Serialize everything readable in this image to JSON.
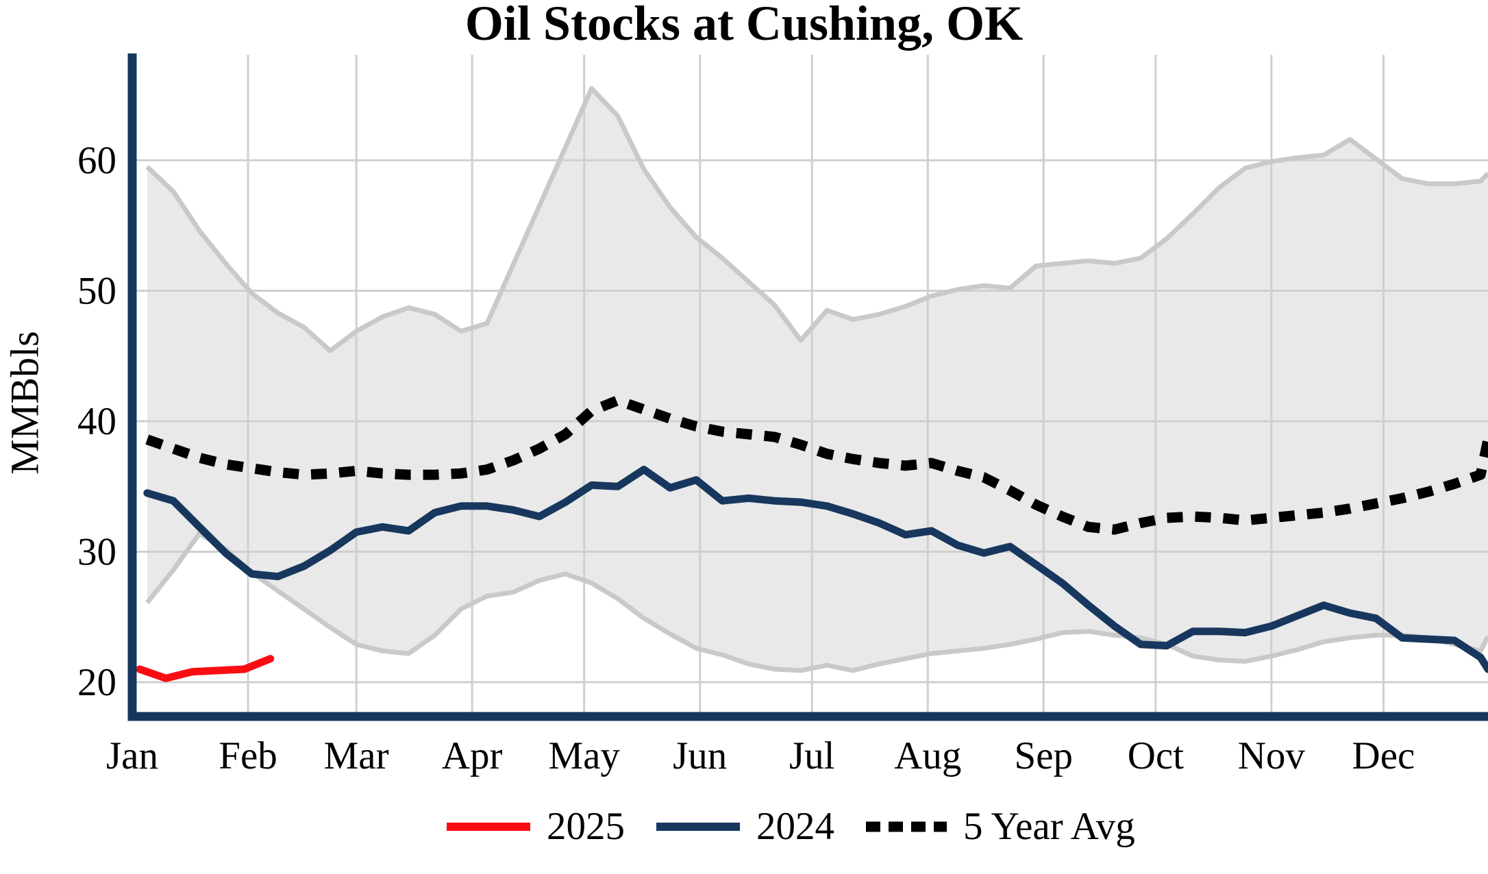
{
  "chart_data": {
    "type": "line",
    "title": "Oil Stocks at Cushing, OK",
    "ylabel": "MMBbls",
    "x_tick_labels": [
      "Jan",
      "Feb",
      "Mar",
      "Apr",
      "May",
      "Jun",
      "Jul",
      "Aug",
      "Sep",
      "Oct",
      "Nov",
      "Dec"
    ],
    "month_start_days": [
      0,
      31,
      60,
      91,
      121,
      152,
      182,
      213,
      244,
      274,
      305,
      335
    ],
    "y_ticks": [
      20,
      30,
      40,
      50,
      60
    ],
    "ylim": [
      17.5,
      67.5
    ],
    "grid": true,
    "legend_position": "bottom",
    "x_frequency": "weekly",
    "week_days": [
      4,
      11,
      18,
      25,
      32,
      39,
      46,
      53,
      60,
      67,
      74,
      81,
      88,
      95,
      102,
      109,
      116,
      123,
      130,
      137,
      144,
      151,
      158,
      165,
      172,
      179,
      186,
      193,
      200,
      207,
      214,
      221,
      228,
      235,
      242,
      249,
      256,
      263,
      270,
      277,
      284,
      291,
      298,
      305,
      312,
      319,
      326,
      333,
      340,
      347,
      354,
      361,
      363
    ],
    "band": {
      "name": "5-year range",
      "fill": "#e9e9e9",
      "edge": "#c9c9c9",
      "top": [
        59.5,
        57.6,
        54.6,
        52.1,
        49.8,
        48.3,
        47.2,
        45.4,
        46.9,
        48.0,
        48.7,
        48.2,
        46.9,
        47.5,
        52.0,
        56.5,
        61.0,
        65.5,
        63.4,
        59.3,
        56.4,
        54.1,
        52.5,
        50.7,
        48.9,
        46.2,
        48.5,
        47.8,
        48.2,
        48.8,
        49.6,
        50.1,
        50.4,
        50.2,
        51.9,
        52.1,
        52.3,
        52.1,
        52.5,
        54.0,
        55.9,
        57.9,
        59.4,
        59.9,
        60.2,
        60.4,
        61.6,
        60.1,
        58.6,
        58.2,
        58.2,
        58.4,
        59.0
      ],
      "bottom": [
        26.1,
        28.6,
        31.4,
        30.2,
        28.4,
        27.0,
        25.6,
        24.2,
        22.9,
        22.4,
        22.2,
        23.6,
        25.6,
        26.6,
        26.9,
        27.8,
        28.3,
        27.6,
        26.4,
        24.9,
        23.7,
        22.6,
        22.1,
        21.4,
        21.0,
        20.9,
        21.3,
        20.9,
        21.4,
        21.8,
        22.2,
        22.4,
        22.6,
        22.9,
        23.3,
        23.8,
        23.9,
        23.6,
        23.4,
        22.9,
        22.0,
        21.7,
        21.6,
        22.0,
        22.5,
        23.1,
        23.4,
        23.6,
        23.6,
        23.4,
        22.9,
        22.4,
        23.5
      ]
    },
    "series": [
      {
        "name": "2025",
        "color": "#f90d13",
        "style": "solid",
        "days": [
          2,
          9,
          16,
          23,
          30,
          37
        ],
        "values": [
          21.0,
          20.3,
          20.8,
          20.9,
          21.0,
          21.8
        ]
      },
      {
        "name": "2024",
        "color": "#17375e",
        "style": "solid",
        "values": [
          34.5,
          33.9,
          31.9,
          29.9,
          28.3,
          28.1,
          28.9,
          30.1,
          31.5,
          31.9,
          31.6,
          33.0,
          33.5,
          33.5,
          33.2,
          32.7,
          33.8,
          35.1,
          35.0,
          36.3,
          34.9,
          35.5,
          33.9,
          34.1,
          33.9,
          33.8,
          33.5,
          32.9,
          32.2,
          31.3,
          31.6,
          30.5,
          29.9,
          30.4,
          29.0,
          27.6,
          25.9,
          24.3,
          22.9,
          22.8,
          23.9,
          23.9,
          23.8,
          24.3,
          25.1,
          25.9,
          25.3,
          24.9,
          23.4,
          23.3,
          23.2,
          21.9,
          21.0
        ]
      },
      {
        "name": "5 Year Avg",
        "color": "#000000",
        "style": "dashed",
        "values": [
          38.6,
          37.9,
          37.2,
          36.7,
          36.4,
          36.1,
          35.9,
          36.0,
          36.2,
          36.0,
          35.9,
          35.9,
          36.0,
          36.3,
          37.0,
          37.9,
          39.0,
          40.8,
          41.6,
          40.9,
          40.2,
          39.6,
          39.2,
          39.0,
          38.8,
          38.2,
          37.5,
          37.1,
          36.8,
          36.6,
          36.8,
          36.2,
          35.7,
          34.7,
          33.6,
          32.7,
          31.9,
          31.7,
          32.2,
          32.6,
          32.7,
          32.6,
          32.4,
          32.6,
          32.8,
          33.0,
          33.3,
          33.7,
          34.1,
          34.6,
          35.2,
          35.9,
          38.6
        ]
      }
    ]
  },
  "legend": {
    "items": [
      {
        "label": "2025",
        "color": "#f90d13",
        "style": "solid"
      },
      {
        "label": "2024",
        "color": "#17375e",
        "style": "solid"
      },
      {
        "label": "5 Year Avg",
        "color": "#000000",
        "style": "dashed"
      }
    ]
  },
  "colors": {
    "axis_spine": "#17375e",
    "gridline": "#cfcfcf",
    "band_fill": "#e9e9e9",
    "band_edge": "#c9c9c9",
    "text": "#000000"
  }
}
